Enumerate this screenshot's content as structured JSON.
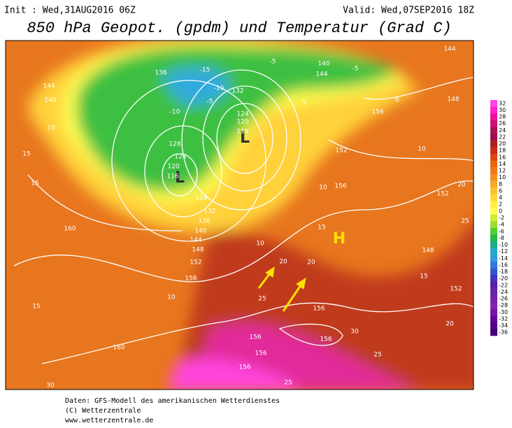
{
  "header": {
    "init": "Init : Wed,31AUG2016 06Z",
    "valid": "Valid: Wed,07SEP2016 18Z",
    "title": "850 hPa Geopot. (gpdm) und Temperatur (Grad C)"
  },
  "map": {
    "pressure_centers": [
      "L",
      "L",
      "H"
    ],
    "labels": [
      "144",
      "140",
      "136",
      "132",
      "124",
      "120",
      "116",
      "128",
      "124",
      "120",
      "116",
      "128",
      "132",
      "136",
      "140",
      "144",
      "148",
      "152",
      "156",
      "160",
      "160",
      "156",
      "152",
      "148",
      "144",
      "140",
      "144",
      "156",
      "152",
      "148",
      "152",
      "156",
      "156",
      "156",
      "156",
      "156",
      "10",
      "15",
      "15",
      "10",
      "20",
      "25",
      "20",
      "15",
      "15",
      "-5",
      "-10",
      "-15",
      "-10",
      "-5",
      "-5",
      "0",
      "5",
      "10",
      "15",
      "20",
      "25",
      "30",
      "30",
      "25",
      "20",
      "15",
      "10",
      "25"
    ]
  },
  "colorbar": {
    "levels": [
      32,
      30,
      28,
      26,
      24,
      22,
      20,
      18,
      16,
      14,
      12,
      10,
      8,
      6,
      4,
      2,
      0,
      -2,
      -4,
      -6,
      -8,
      -10,
      -12,
      -14,
      -16,
      -18,
      -20,
      -22,
      -24,
      -26,
      -28,
      -30,
      -32,
      -34,
      -36
    ],
    "colors": [
      "#ff44ee",
      "#ff22cc",
      "#ee1199",
      "#cc1177",
      "#aa1155",
      "#991144",
      "#aa2222",
      "#cc2a1a",
      "#dd4411",
      "#ee6611",
      "#f07a18",
      "#f59020",
      "#f8a828",
      "#fbc030",
      "#fdd838",
      "#ffee40",
      "#ffff55",
      "#ccee33",
      "#99dd33",
      "#55cc33",
      "#22bb44",
      "#22aa88",
      "#22aacc",
      "#3399dd",
      "#3377dd",
      "#3355cc",
      "#4433bb",
      "#5522aa",
      "#6622aa",
      "#7722aa",
      "#8822aa",
      "#7711aa",
      "#660099",
      "#550088",
      "#440077"
    ]
  },
  "footer": [
    "Daten: GFS-Modell des amerikanischen Wetterdienstes",
    "(C) Wetterzentrale",
    "www.wetterzentrale.de"
  ]
}
